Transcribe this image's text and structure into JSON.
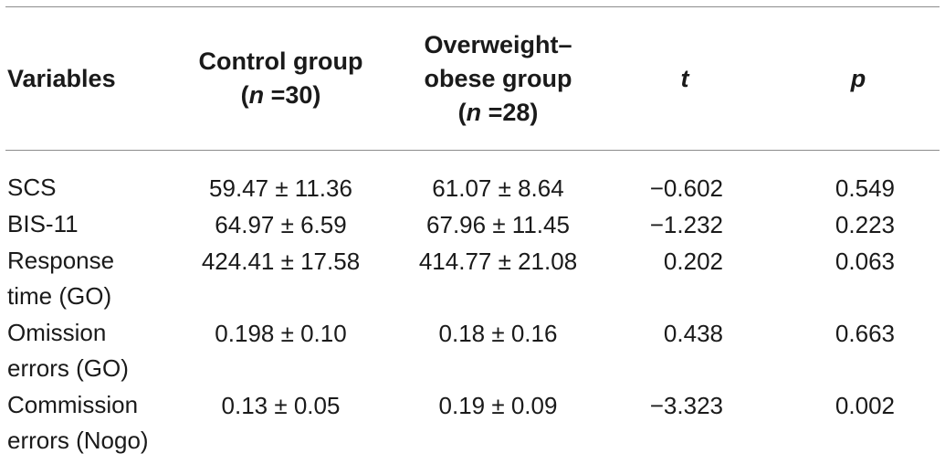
{
  "table": {
    "headers": {
      "variables": "Variables",
      "control_line1": "Control group",
      "control_n_label": "n",
      "control_n_value": "30",
      "obese_line1": "Overweight–",
      "obese_line2": "obese group",
      "obese_n_label": "n",
      "obese_n_value": "28",
      "t": "t",
      "p": "p"
    },
    "rows": [
      {
        "variable_line1": "SCS",
        "variable_line2": "",
        "control": "59.47 ± 11.36",
        "obese": "61.07 ± 8.64",
        "t": "−0.602",
        "p": "0.549"
      },
      {
        "variable_line1": "BIS-11",
        "variable_line2": "",
        "control": "64.97 ± 6.59",
        "obese": "67.96 ± 11.45",
        "t": "−1.232",
        "p": "0.223"
      },
      {
        "variable_line1": "Response",
        "variable_line2": "time (GO)",
        "control": "424.41 ± 17.58",
        "obese": "414.77 ± 21.08",
        "t": "0.202",
        "p": "0.063"
      },
      {
        "variable_line1": "Omission",
        "variable_line2": "errors (GO)",
        "control": "0.198 ± 0.10",
        "obese": "0.18 ± 0.16",
        "t": "0.438",
        "p": "0.663"
      },
      {
        "variable_line1": "Commission",
        "variable_line2": "errors (Nogo)",
        "control": "0.13 ± 0.05",
        "obese": "0.19 ± 0.09",
        "t": "−3.323",
        "p": "0.002"
      }
    ]
  }
}
